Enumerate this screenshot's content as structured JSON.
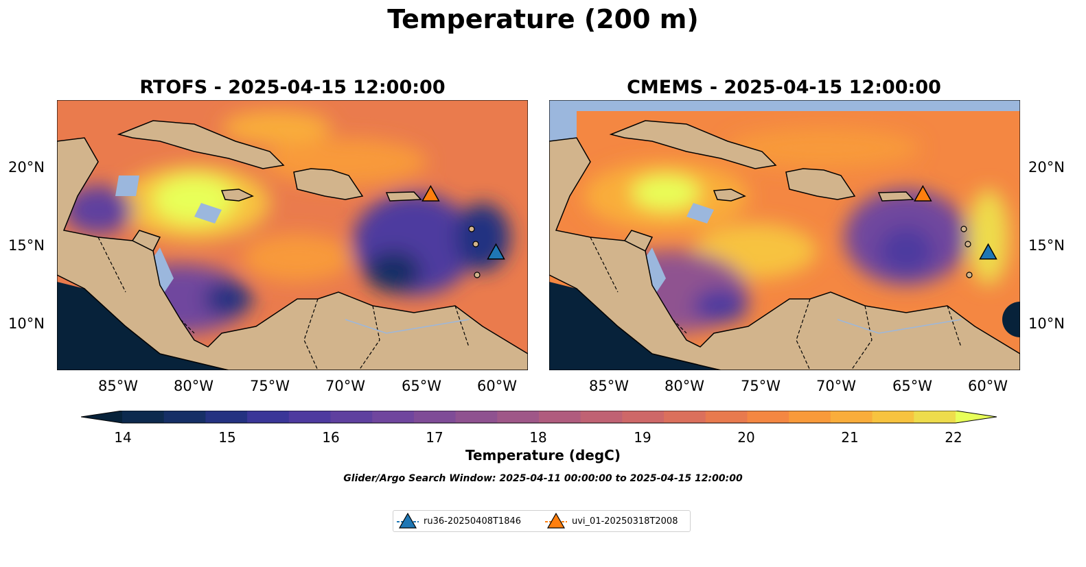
{
  "title": "Temperature (200 m)",
  "panels": [
    {
      "title": "RTOFS - 2025-04-15 12:00:00"
    },
    {
      "title": "CMEMS - 2025-04-15 12:00:00"
    }
  ],
  "axes": {
    "lon_labels": [
      "85°W",
      "80°W",
      "75°W",
      "70°W",
      "65°W",
      "60°W"
    ],
    "lat_labels": [
      "20°N",
      "15°N",
      "10°N"
    ],
    "lon_range": [
      -89.5,
      -58.5
    ],
    "lat_range": [
      7.0,
      24.2
    ]
  },
  "colorbar": {
    "label": "Temperature (degC)",
    "ticks": [
      "14",
      "15",
      "16",
      "17",
      "18",
      "19",
      "20",
      "21",
      "22"
    ],
    "range": [
      14,
      22
    ],
    "step": 0.5,
    "extend": "both",
    "colors": [
      "#07223a",
      "#0d2a4e",
      "#162f66",
      "#243281",
      "#3a3698",
      "#4e3a9f",
      "#5f409f",
      "#70469e",
      "#7f4c97",
      "#8f5290",
      "#9f5788",
      "#b05c7e",
      "#c06273",
      "#ce6868",
      "#db705c",
      "#e87a4e",
      "#f48742",
      "#f89a3a",
      "#f9ad3b",
      "#f7c33f",
      "#eedc4c",
      "#e8ff59"
    ]
  },
  "search_window": "Glider/Argo Search Window: 2025-04-11 00:00:00 to 2025-04-15 12:00:00",
  "legend": [
    {
      "label": "ru36-20250408T1846",
      "color": "#1f77b4"
    },
    {
      "label": "uvi_01-20250318T2008",
      "color": "#ff7f0e"
    }
  ],
  "markers": [
    {
      "name": "ru36-20250408T1846",
      "lon": -60.6,
      "lat": 14.5,
      "color": "#1f77b4"
    },
    {
      "name": "uvi_01-20250318T2008",
      "lon": -64.9,
      "lat": 18.2,
      "color": "#ff7f0e"
    }
  ],
  "colors": {
    "land": "#d2b48c",
    "shelf": "#9bb7dd",
    "deep": "#07223a"
  }
}
